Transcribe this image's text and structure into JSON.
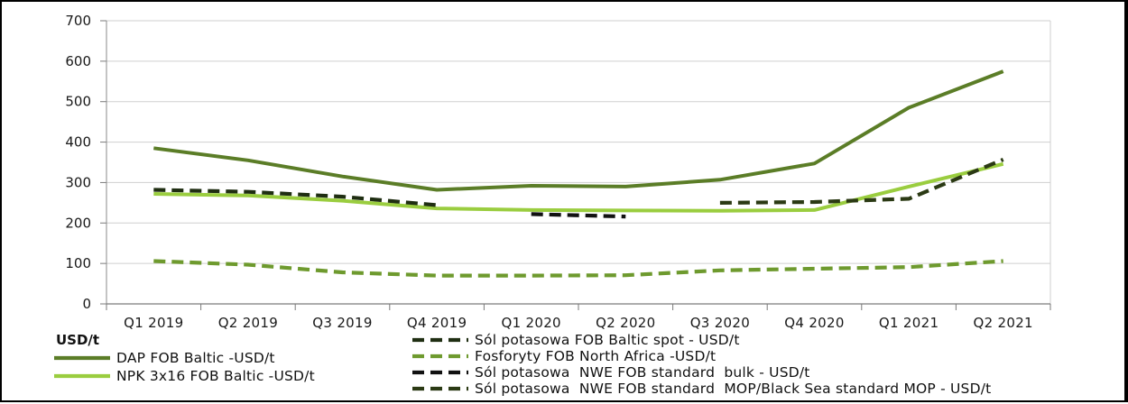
{
  "chart_data": {
    "type": "line",
    "ylabel": "USD/t",
    "ylim": [
      0,
      700
    ],
    "yticks": [
      "0",
      "100",
      "200",
      "300",
      "400",
      "500",
      "600",
      "700"
    ],
    "categories": [
      "Q1 2019",
      "Q2 2019",
      "Q3 2019",
      "Q4 2019",
      "Q1 2020",
      "Q2 2020",
      "Q3 2020",
      "Q4 2020",
      "Q1 2021",
      "Q2 2021"
    ],
    "grid": true,
    "legend_position": "bottom",
    "series": [
      {
        "name": "DAP FOB Baltic -USD/t",
        "color": "#5b7d27",
        "style": "solid",
        "values": [
          385,
          355,
          315,
          282,
          292,
          290,
          307,
          347,
          485,
          575
        ]
      },
      {
        "name": "NPK 3x16 FOB Baltic -USD/t",
        "color": "#9acd3f",
        "style": "solid",
        "values": [
          272,
          268,
          255,
          236,
          232,
          231,
          230,
          232,
          290,
          346
        ]
      },
      {
        "name": "Sól potasowa FOB Baltic spot - USD/t",
        "color": "#1f2e12",
        "style": "dashed",
        "values": [
          282,
          277,
          265,
          244,
          null,
          null,
          null,
          null,
          null,
          null
        ]
      },
      {
        "name": "Fosforyty FOB North Africa -USD/t",
        "color": "#6e9a2e",
        "style": "dashed",
        "values": [
          106,
          97,
          78,
          70,
          70,
          71,
          83,
          87,
          91,
          106
        ]
      },
      {
        "name": "Sól potasowa  NWE FOB standard  bulk - USD/t",
        "color": "#111111",
        "style": "dashed",
        "values": [
          null,
          null,
          null,
          null,
          222,
          216,
          null,
          null,
          null,
          null
        ]
      },
      {
        "name": "Sól potasowa  NWE FOB standard  MOP/Black Sea standard MOP - USD/t",
        "color": "#2b3a14",
        "style": "dashed",
        "values": [
          null,
          null,
          null,
          null,
          null,
          null,
          250,
          252,
          260,
          357
        ]
      }
    ]
  }
}
